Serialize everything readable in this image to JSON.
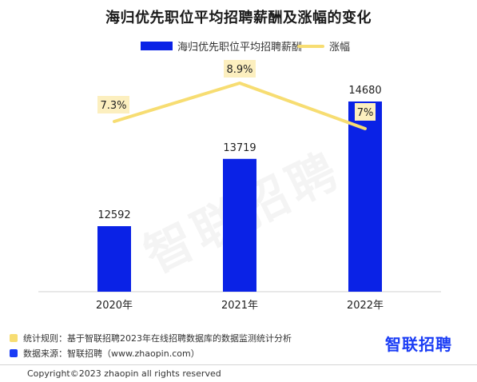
{
  "chart_data": {
    "type": "bar",
    "title": "海归优先职位平均招聘薪酬及涨幅的变化",
    "categories": [
      "2020年",
      "2021年",
      "2022年"
    ],
    "series": [
      {
        "name": "海归优先职位平均招聘薪酬",
        "kind": "bar",
        "values": [
          12592,
          13719,
          14680
        ],
        "labels": [
          "12592",
          "13719",
          "14680"
        ]
      },
      {
        "name": "涨幅",
        "kind": "line",
        "values": [
          7.3,
          8.9,
          7.0
        ],
        "labels": [
          "7.3%",
          "8.9%",
          "7%"
        ],
        "unit": "%"
      }
    ],
    "bar_color": "#0a22e6",
    "line_color": "#f7dd72",
    "label_bg": "#fcefbf",
    "xlabel": "",
    "ylabel": "",
    "grid": false,
    "legend": "top-center"
  },
  "notes": [
    {
      "text": "统计规则：基于智联招聘2023年在线招聘数据库的数据监测统计分析",
      "color": "#f7dd72"
    },
    {
      "text": "数据来源：智联招聘（www.zhaopin.com）",
      "color": "#1a3cf5"
    }
  ],
  "logo": "智联招聘",
  "watermark": "智联招聘",
  "copyright": "Copyright©2023 zhaopin all rights reserved"
}
